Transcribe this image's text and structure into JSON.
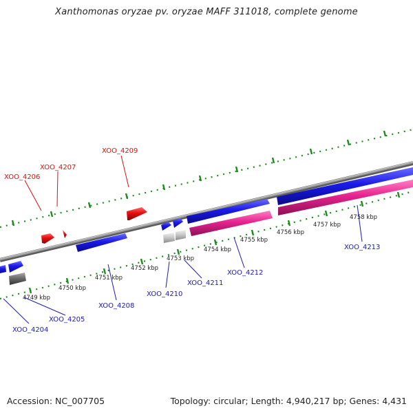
{
  "title": "Xanthomonas oryzae pv. oryzae MAFF 311018, complete genome",
  "footer": {
    "accession": "Accession: NC_007705",
    "summary": "Topology: circular; Length: 4,940,217 bp; Genes: 4,431"
  },
  "colors": {
    "forward_gene": "#1a1ae6",
    "reverse_gene": "#e60c0c",
    "rna_gene": "#e6238f",
    "pseudo_gene": "#bdbdbd",
    "other_gene": "#666666",
    "backbone": "#8a8a8a",
    "tick": "#1e8a1e",
    "label_forward": "#1a1ab4",
    "label_reverse": "#d61010"
  },
  "scale_labels": [
    "4749 kbp",
    "4750 kbp",
    "4751 kbp",
    "4752 kbp",
    "4753 kbp",
    "4754 kbp",
    "4755 kbp",
    "4756 kbp",
    "4757 kbp",
    "4758 kbp"
  ],
  "gene_labels": [
    {
      "id": "XOO_4204",
      "strand": "forward"
    },
    {
      "id": "XOO_4205",
      "strand": "forward"
    },
    {
      "id": "XOO_4206",
      "strand": "reverse"
    },
    {
      "id": "XOO_4207",
      "strand": "reverse"
    },
    {
      "id": "XOO_4208",
      "strand": "forward"
    },
    {
      "id": "XOO_4209",
      "strand": "reverse"
    },
    {
      "id": "XOO_4210",
      "strand": "forward"
    },
    {
      "id": "XOO_4211",
      "strand": "forward"
    },
    {
      "id": "XOO_4212",
      "strand": "forward"
    },
    {
      "id": "XOO_4213",
      "strand": "forward"
    }
  ]
}
